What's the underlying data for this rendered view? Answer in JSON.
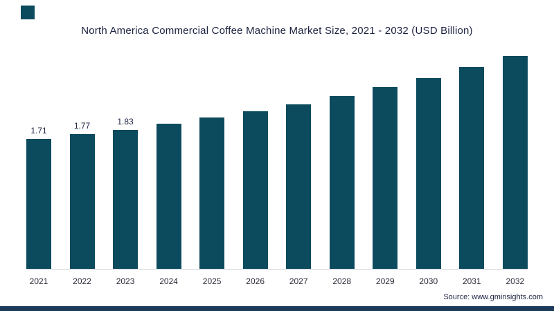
{
  "logo": {
    "color": "#0c4a5e"
  },
  "chart_data": {
    "type": "bar",
    "title": "North America Commercial Coffee Machine Market Size, 2021 - 2032 (USD Billion)",
    "categories": [
      "2021",
      "2022",
      "2023",
      "2024",
      "2025",
      "2026",
      "2027",
      "2028",
      "2029",
      "2030",
      "2031",
      "2032"
    ],
    "values": [
      1.71,
      1.77,
      1.83,
      1.91,
      1.99,
      2.07,
      2.16,
      2.27,
      2.39,
      2.51,
      2.65,
      2.8
    ],
    "data_labels": [
      "1.71",
      "1.77",
      "1.83",
      null,
      null,
      null,
      null,
      null,
      null,
      null,
      null,
      null
    ],
    "xlabel": "",
    "ylabel": "",
    "ylim": [
      0,
      3.0
    ],
    "grid": false,
    "legend": false,
    "bar_color": "#0c4a5e"
  },
  "source": {
    "label": "Source: www.gminsights.com"
  }
}
